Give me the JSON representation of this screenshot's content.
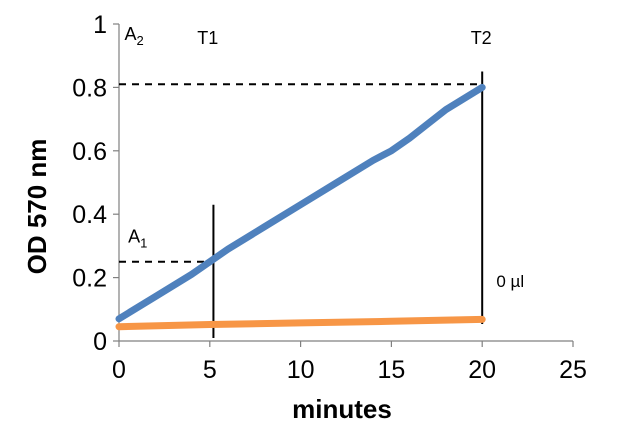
{
  "chart_data": {
    "type": "line",
    "xlabel": "minutes",
    "ylabel": "OD 570 nm",
    "xlim": [
      0,
      25
    ],
    "ylim": [
      0,
      1
    ],
    "xticks": [
      {
        "value": 0,
        "label": "0"
      },
      {
        "value": 5,
        "label": "5"
      },
      {
        "value": 10,
        "label": "10"
      },
      {
        "value": 15,
        "label": "15"
      },
      {
        "value": 20,
        "label": "20"
      },
      {
        "value": 25,
        "label": "25"
      }
    ],
    "yticks": [
      {
        "value": 0,
        "label": "0"
      },
      {
        "value": 0.2,
        "label": "0.2"
      },
      {
        "value": 0.4,
        "label": "0.4"
      },
      {
        "value": 0.6,
        "label": "0.6"
      },
      {
        "value": 0.8,
        "label": "0.8"
      },
      {
        "value": 1,
        "label": "1"
      }
    ],
    "grid": false,
    "series": [
      {
        "color": "#4f81bd",
        "x": [
          0,
          2,
          4,
          6,
          8,
          10,
          12,
          14,
          15,
          16,
          18,
          20
        ],
        "y": [
          0.07,
          0.14,
          0.21,
          0.29,
          0.36,
          0.43,
          0.5,
          0.57,
          0.6,
          0.64,
          0.73,
          0.8
        ]
      },
      {
        "color": "#f79646",
        "x": [
          0,
          5,
          10,
          15,
          20
        ],
        "y": [
          0.045,
          0.052,
          0.057,
          0.062,
          0.068
        ]
      }
    ],
    "annotations": {
      "a2": {
        "label": "A",
        "subscript": "2",
        "x": 0.3,
        "y": 0.95
      },
      "t1": {
        "label": "T1",
        "x": 5,
        "y": 0.95
      },
      "t2": {
        "label": "T2",
        "x": 20,
        "y": 0.95
      },
      "a1": {
        "label": "A",
        "subscript": "1",
        "x": 0.5,
        "y": 0.31
      },
      "vol": {
        "label": "0 µl",
        "x": 21,
        "y": 0.18
      },
      "a2_dashed": {
        "y": 0.81,
        "x_from": 0,
        "x_to": 20
      },
      "a1_dashed": {
        "y": 0.25,
        "x_from": 0,
        "x_to": 5.2
      },
      "t1_line": {
        "x": 5.2,
        "y_from": 0,
        "y_to": 0.43
      },
      "t2_line": {
        "x": 20,
        "y_from": 0,
        "y_to": 0.85
      }
    }
  }
}
